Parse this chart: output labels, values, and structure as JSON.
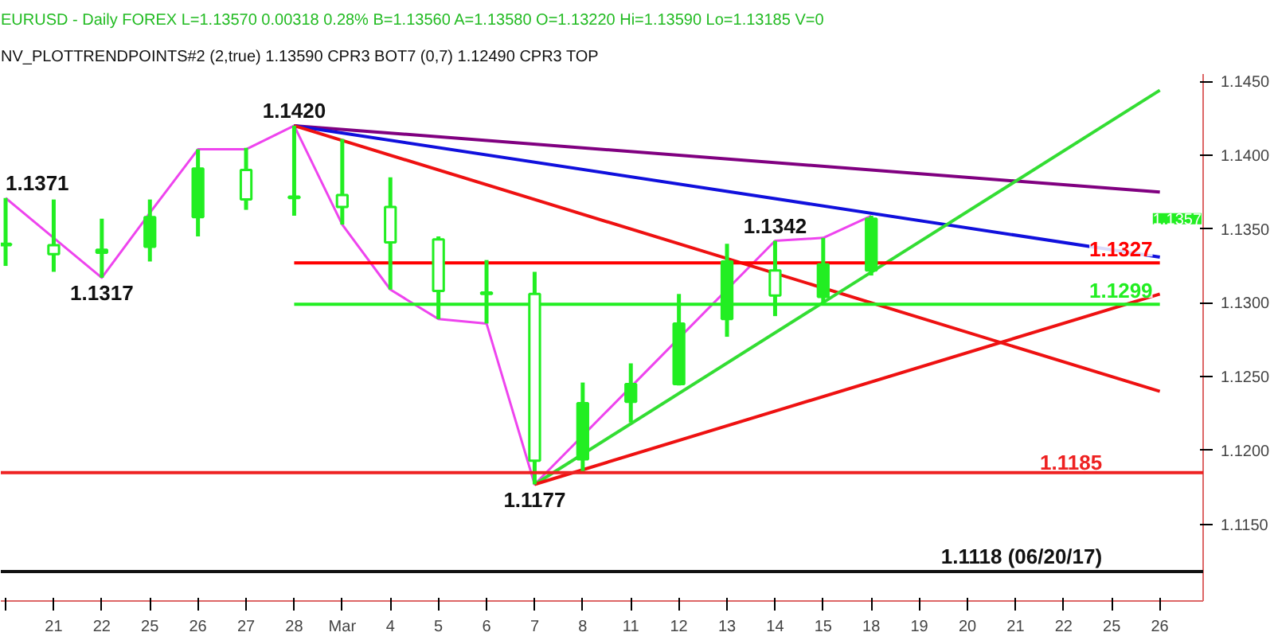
{
  "chart_data": {
    "type": "candlestick",
    "title": "EURUSD - Daily  FOREX  L=1.13570  0.00318  0.28%  B=1.13560  A=1.13580  O=1.13220  Hi=1.13590  Lo=1.13185  V=0",
    "subtitle": "NV_PLOTTRENDPOINTS#2 (2,true)  1.13590  CPR3 BOT7 (0,7)  1.12490  CPR3 TOP",
    "categories": [
      null,
      "21",
      "22",
      "25",
      "26",
      "27",
      "28",
      "Mar",
      "4",
      "5",
      "6",
      "7",
      "8",
      "11",
      "12",
      "13",
      "14",
      "15",
      "18",
      "19",
      "20",
      "21",
      "22",
      "25",
      "26"
    ],
    "ohlc": [
      [
        1.134,
        1.1371,
        1.1325,
        1.1339
      ],
      [
        1.1339,
        1.137,
        1.1321,
        1.1333
      ],
      [
        1.1334,
        1.1357,
        1.1317,
        1.1336
      ],
      [
        1.1338,
        1.137,
        1.1328,
        1.1358
      ],
      [
        1.1358,
        1.1404,
        1.1345,
        1.1391
      ],
      [
        1.139,
        1.1405,
        1.1363,
        1.137
      ],
      [
        1.1372,
        1.142,
        1.1359,
        1.1371
      ],
      [
        1.1373,
        1.1411,
        1.1353,
        1.1365
      ],
      [
        1.1365,
        1.1385,
        1.1309,
        1.1341
      ],
      [
        1.1343,
        1.1345,
        1.1289,
        1.1308
      ],
      [
        1.1307,
        1.1329,
        1.1286,
        1.1306
      ],
      [
        1.1306,
        1.1321,
        1.1177,
        1.1193
      ],
      [
        1.1194,
        1.1246,
        1.1185,
        1.1232
      ],
      [
        1.1233,
        1.1259,
        1.1219,
        1.1245
      ],
      [
        1.1245,
        1.1306,
        1.1244,
        1.1286
      ],
      [
        1.1289,
        1.134,
        1.1277,
        1.1328
      ],
      [
        1.1322,
        1.1342,
        1.1291,
        1.1305
      ],
      [
        1.1304,
        1.1344,
        1.1299,
        1.1326
      ],
      [
        1.1322,
        1.1359,
        1.13185,
        1.1357
      ],
      null,
      null,
      null,
      null,
      null,
      null
    ],
    "color": "#22ee22",
    "series": [
      {
        "type": "line",
        "color": "#ee44ee",
        "values": [
          1.1371,
          1.1344,
          1.1317,
          1.1361,
          1.1404,
          1.1404,
          1.142,
          1.1353,
          1.1309,
          1.1289,
          1.1286,
          1.1177,
          null,
          1.1243,
          null,
          null,
          1.1342,
          1.1344,
          1.1359,
          null,
          null,
          null,
          null,
          null,
          null
        ]
      },
      {
        "type": "line",
        "color": "#800080",
        "values": [
          null,
          null,
          null,
          null,
          null,
          null,
          1.142,
          null,
          null,
          null,
          null,
          null,
          null,
          null,
          null,
          null,
          null,
          null,
          null,
          null,
          null,
          null,
          null,
          null,
          1.1375
        ]
      },
      {
        "type": "line",
        "color": "#1010dd",
        "values": [
          null,
          null,
          null,
          null,
          null,
          null,
          1.142,
          null,
          null,
          null,
          null,
          null,
          null,
          null,
          null,
          null,
          null,
          null,
          null,
          null,
          null,
          null,
          null,
          null,
          1.1331
        ]
      },
      {
        "type": "line",
        "color": "#ee1111",
        "values": [
          null,
          null,
          null,
          null,
          null,
          null,
          1.142,
          null,
          null,
          null,
          null,
          null,
          null,
          null,
          null,
          null,
          null,
          null,
          null,
          null,
          null,
          null,
          null,
          null,
          1.124
        ]
      },
      {
        "type": "line",
        "color": "#33dd33",
        "values": [
          null,
          null,
          null,
          null,
          null,
          null,
          null,
          null,
          null,
          null,
          null,
          1.1177,
          null,
          null,
          null,
          null,
          null,
          null,
          null,
          null,
          null,
          null,
          null,
          null,
          1.1444
        ]
      },
      {
        "type": "line",
        "color": "#ee1111",
        "values": [
          null,
          null,
          null,
          null,
          null,
          null,
          null,
          null,
          null,
          null,
          null,
          1.1177,
          null,
          null,
          null,
          null,
          null,
          null,
          null,
          null,
          null,
          null,
          null,
          null,
          1.1306
        ]
      },
      {
        "type": "line",
        "color": "#ff0000",
        "name": "1.1327",
        "values": [
          null,
          null,
          null,
          null,
          null,
          null,
          1.1327,
          null,
          null,
          null,
          null,
          null,
          null,
          null,
          null,
          null,
          null,
          null,
          null,
          null,
          null,
          null,
          null,
          null,
          1.1327
        ]
      },
      {
        "type": "line",
        "color": "#22ee22",
        "name": "1.1299",
        "values": [
          null,
          null,
          null,
          null,
          null,
          null,
          1.1299,
          null,
          null,
          null,
          null,
          null,
          null,
          null,
          null,
          null,
          null,
          null,
          null,
          null,
          null,
          null,
          null,
          null,
          1.1299
        ]
      }
    ],
    "ref_lines": [
      {
        "axis": "y",
        "value": 1.1185,
        "label": "1.1185",
        "color": "#ee2222"
      },
      {
        "axis": "y",
        "value": 1.1118,
        "label": "1.1118 (06/20/17)",
        "color": "#111111"
      }
    ],
    "annotations": [
      "1.1371",
      "1.1420",
      {
        "text": "1.1317",
        "x": "22",
        "y": 1.1317
      },
      {
        "text": "1.1177",
        "x": "7",
        "y": 1.1177
      },
      {
        "text": "1.1342",
        "x": "14",
        "y": 1.1342
      },
      "1.1357"
    ],
    "ylim": [
      1.1098,
      1.1455
    ],
    "yticks": [
      {
        "value": 1.115,
        "label": "1.1150"
      },
      {
        "value": 1.12,
        "label": "1.1200"
      },
      {
        "value": 1.125,
        "label": "1.1250"
      },
      {
        "value": 1.13,
        "label": "1.1300"
      },
      {
        "value": 1.135,
        "label": "1.1350"
      },
      {
        "value": 1.14,
        "label": "1.1400"
      },
      {
        "value": 1.145,
        "label": "1.1450"
      }
    ],
    "grid": false
  }
}
